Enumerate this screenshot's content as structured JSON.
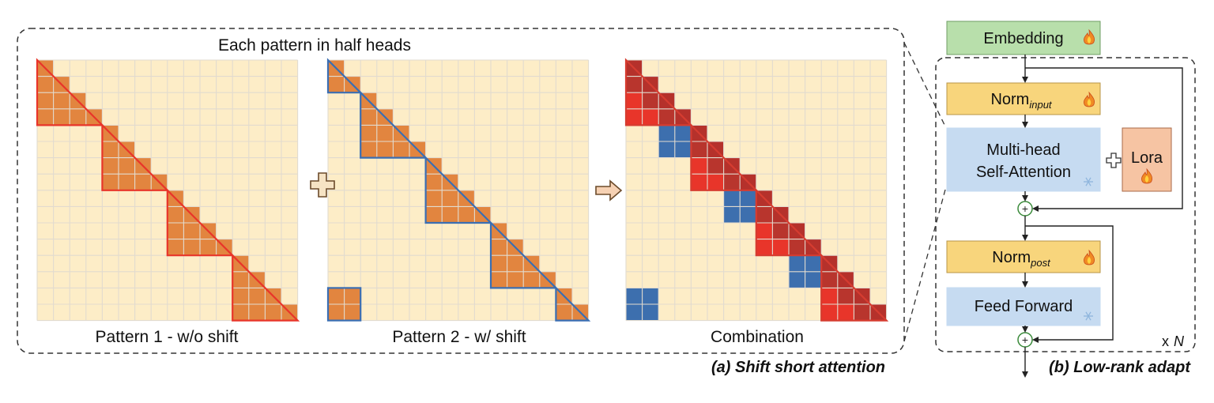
{
  "left_panel": {
    "header": "Each pattern in half heads",
    "caption": "(a) Shift short attention",
    "pattern1_label": "Pattern 1 - w/o shift",
    "pattern2_label": "Pattern 2 - w/ shift",
    "combination_label": "Combination",
    "grid_size": 16,
    "group_size": 4
  },
  "right_panel": {
    "caption": "(b) Low-rank adapt",
    "embedding": "Embedding",
    "norm_input_base": "Norm",
    "norm_input_sub": "input",
    "attention_line1": "Multi-head",
    "attention_line2": "Self-Attention",
    "lora": "Lora",
    "norm_post_base": "Norm",
    "norm_post_sub": "post",
    "feed_forward": "Feed Forward",
    "repeat_prefix": "x",
    "repeat_var": "N",
    "plus_symbol": "+"
  },
  "colors": {
    "grid_bg": "#fdedc7",
    "grid_line": "#d8d2c6",
    "cell_fill": "#e2853f",
    "pattern1_outline": "#e8352a",
    "pattern2_outline": "#3a6eb3",
    "combo_red": "#e8352a",
    "combo_blue": "#3d6fae",
    "embedding_fill": "#b8dfab",
    "norm_fill": "#f8d57c",
    "attention_fill": "#c6dbf1",
    "lora_fill": "#f6c4a3"
  },
  "icons": [
    "flame-icon",
    "snowflake-icon"
  ]
}
